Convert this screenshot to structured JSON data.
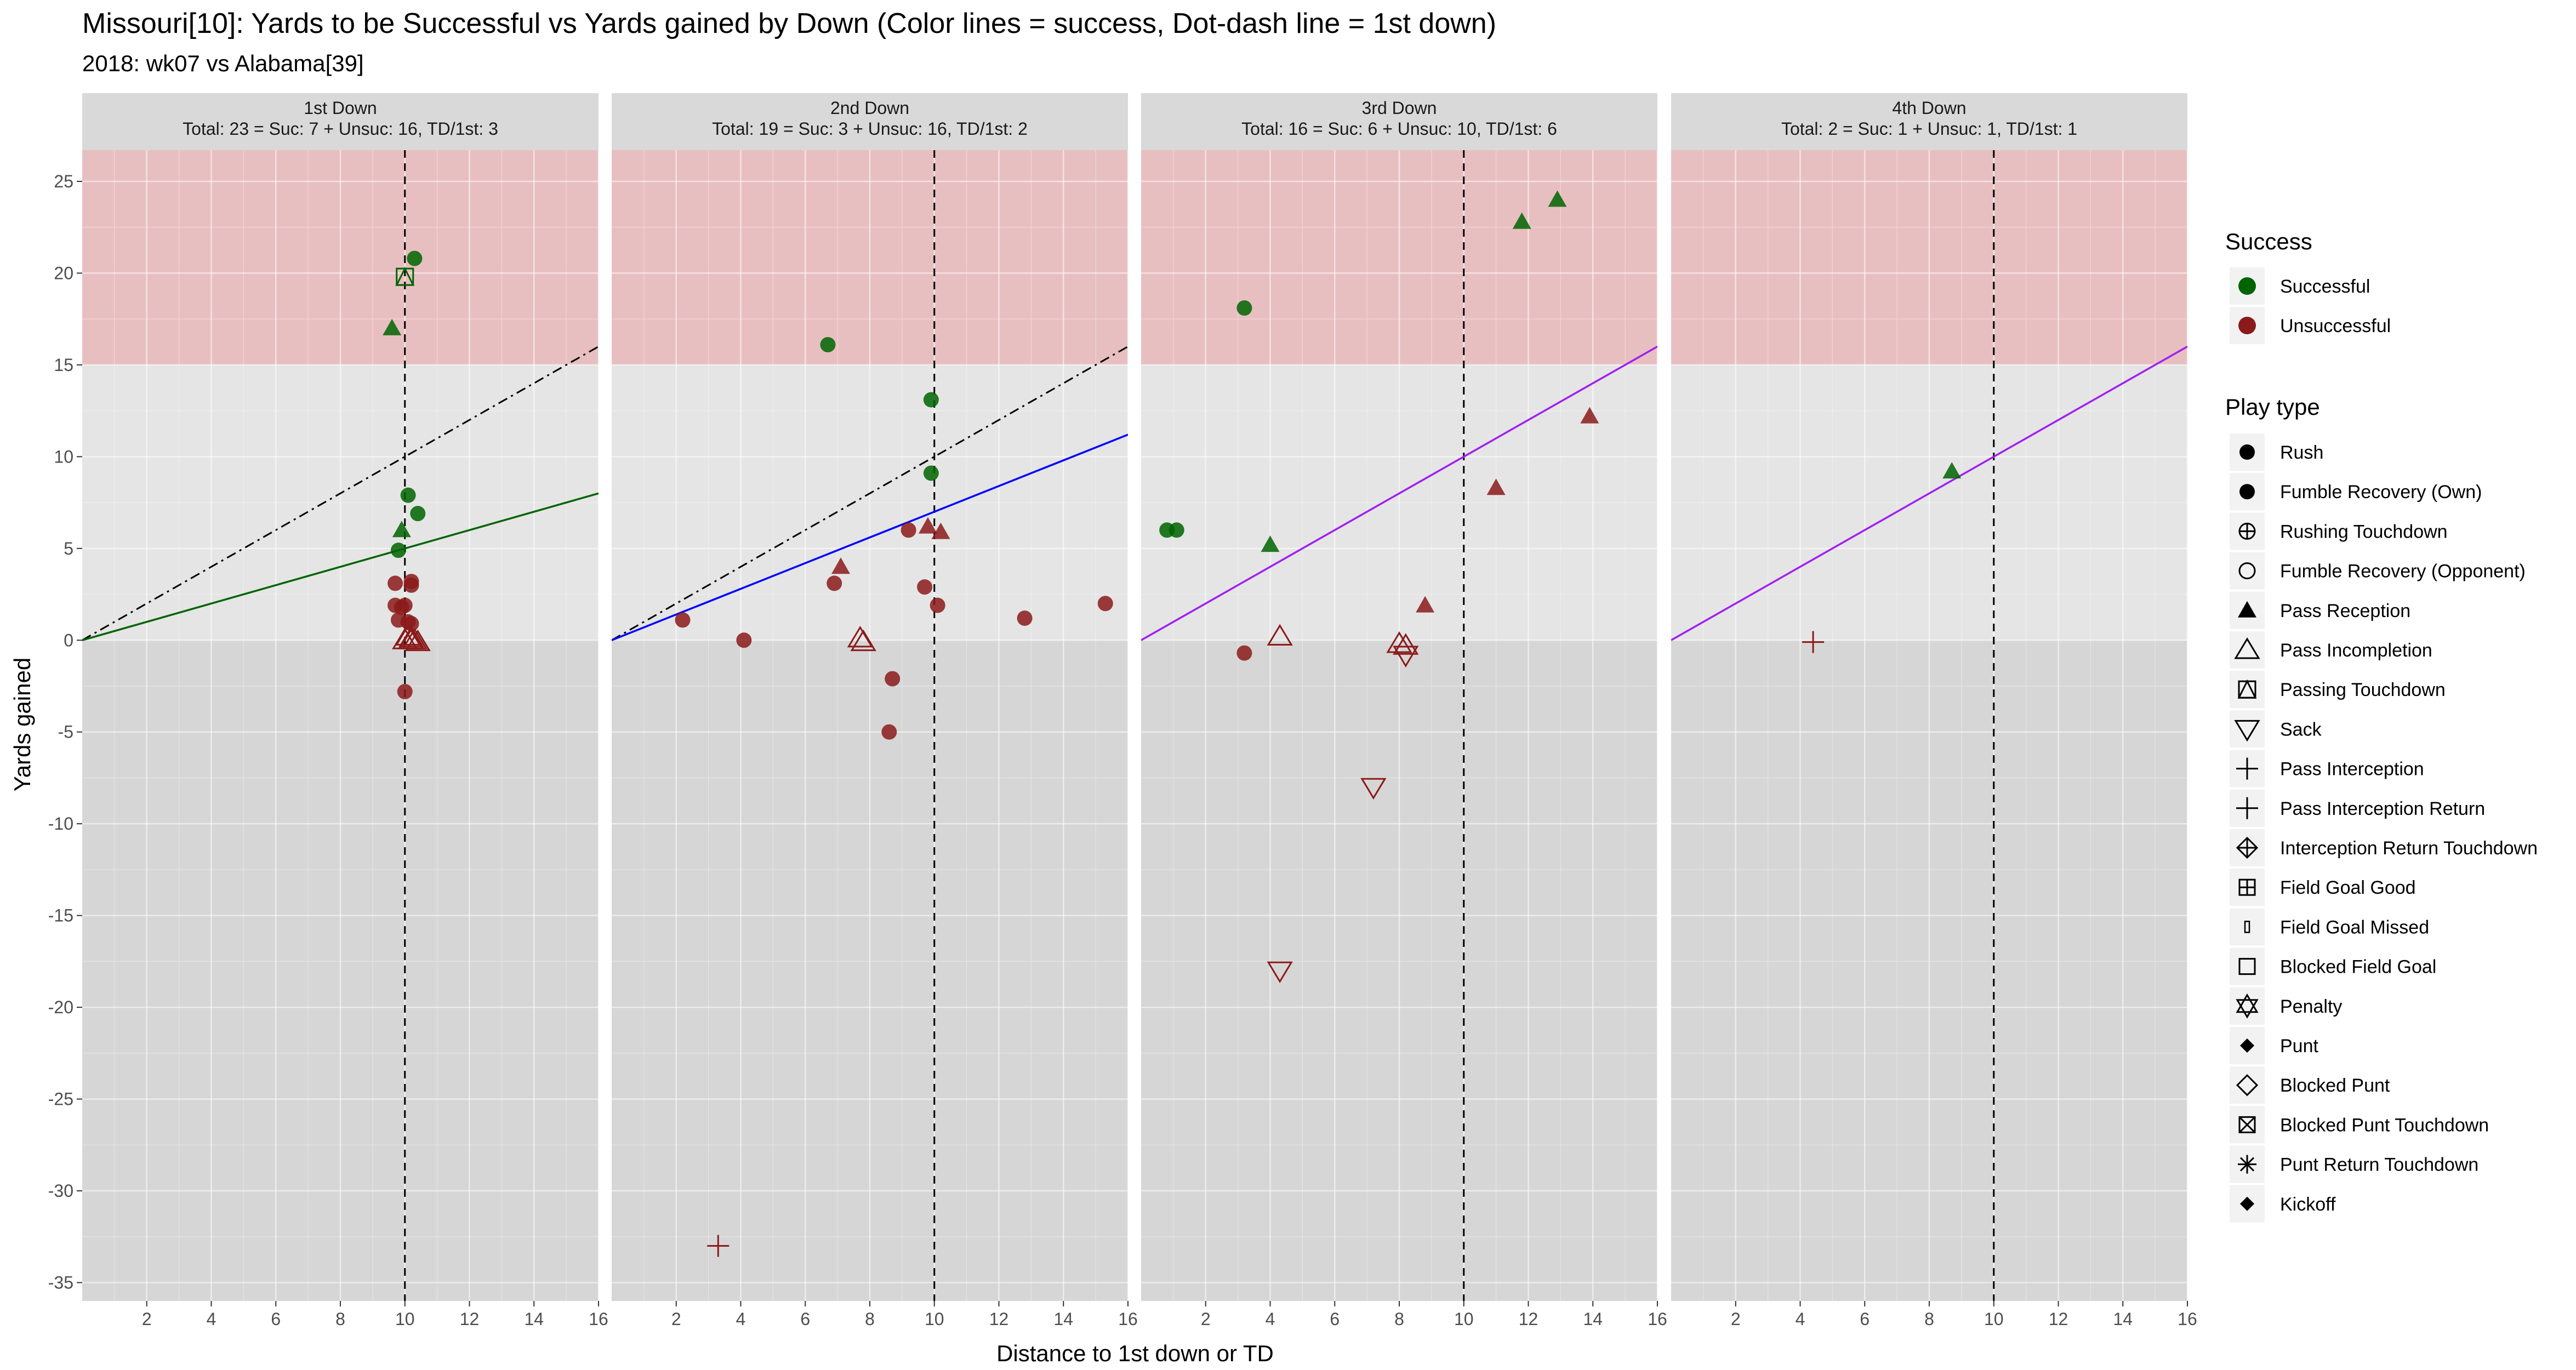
{
  "title": "Missouri[10]: Yards to be Successful vs Yards gained by Down  (Color lines = success, Dot-dash line = 1st down)",
  "subtitle": "2018: wk07 vs Alabama[39]",
  "chart_data": {
    "type": "scatter",
    "xlabel": "Distance to 1st down or TD",
    "ylabel": "Yards gained",
    "xlim": [
      0,
      16
    ],
    "ylim": [
      -36,
      26.7
    ],
    "x_ticks": [
      2,
      4,
      6,
      8,
      10,
      12,
      14,
      16
    ],
    "y_ticks": [
      25,
      20,
      15,
      10,
      5,
      0,
      -5,
      -10,
      -15,
      -20,
      -25,
      -30,
      -35
    ],
    "colors": {
      "successful": "#006400",
      "unsuccessful": "#8b1a1a",
      "panel_bg": "#e5e5e5",
      "loss_zone": "#d6d6d6",
      "big_play_zone": "#e8bfc1",
      "strip_bg": "#d9d9d9",
      "grid": "#ffffff"
    },
    "panels": [
      {
        "strip": [
          "1st Down",
          "Total: 23 = Suc: 7 + Unsuc: 16, TD/1st: 3"
        ],
        "success_line": {
          "slope": 0.5,
          "color": "#006400"
        },
        "first_down_line": true,
        "points": [
          {
            "x": 10.3,
            "y": 20.8,
            "type": "Rush",
            "success": true
          },
          {
            "x": 10.0,
            "y": 19.8,
            "type": "Passing Touchdown",
            "success": true
          },
          {
            "x": 9.6,
            "y": 17.0,
            "type": "Pass Reception",
            "success": true
          },
          {
            "x": 10.1,
            "y": 7.9,
            "type": "Rush",
            "success": true
          },
          {
            "x": 10.4,
            "y": 6.9,
            "type": "Rush",
            "success": true
          },
          {
            "x": 9.9,
            "y": 6.0,
            "type": "Pass Reception",
            "success": true
          },
          {
            "x": 9.8,
            "y": 4.9,
            "type": "Rush",
            "success": true
          },
          {
            "x": 9.7,
            "y": 3.1,
            "type": "Rush",
            "success": false
          },
          {
            "x": 10.2,
            "y": 3.2,
            "type": "Rush",
            "success": false
          },
          {
            "x": 10.2,
            "y": 3.0,
            "type": "Rush",
            "success": false
          },
          {
            "x": 9.7,
            "y": 1.9,
            "type": "Rush",
            "success": false
          },
          {
            "x": 9.9,
            "y": 1.8,
            "type": "Rush",
            "success": false
          },
          {
            "x": 10.0,
            "y": 1.9,
            "type": "Rush",
            "success": false
          },
          {
            "x": 9.8,
            "y": 1.1,
            "type": "Rush",
            "success": false
          },
          {
            "x": 10.1,
            "y": 1.0,
            "type": "Rush",
            "success": false
          },
          {
            "x": 10.2,
            "y": 0.9,
            "type": "Rush",
            "success": false
          },
          {
            "x": 10.0,
            "y": 0.0,
            "type": "Pass Incompletion",
            "success": false
          },
          {
            "x": 10.2,
            "y": 0.0,
            "type": "Pass Incompletion",
            "success": false
          },
          {
            "x": 10.3,
            "y": 0.0,
            "type": "Pass Incompletion",
            "success": false
          },
          {
            "x": 10.4,
            "y": -0.1,
            "type": "Pass Incompletion",
            "success": false
          },
          {
            "x": 10.1,
            "y": 0.2,
            "type": "Pass Incompletion",
            "success": false
          },
          {
            "x": 10.2,
            "y": 0.1,
            "type": "Pass Incompletion",
            "success": false
          },
          {
            "x": 10.0,
            "y": -2.8,
            "type": "Rush",
            "success": false
          }
        ]
      },
      {
        "strip": [
          "2nd Down",
          "Total: 19 = Suc: 3 + Unsuc: 16, TD/1st: 2"
        ],
        "success_line": {
          "slope": 0.7,
          "color": "#0000ff"
        },
        "first_down_line": true,
        "points": [
          {
            "x": 6.7,
            "y": 16.1,
            "type": "Rush",
            "success": true
          },
          {
            "x": 9.9,
            "y": 13.1,
            "type": "Rush",
            "success": true
          },
          {
            "x": 9.9,
            "y": 9.1,
            "type": "Rush",
            "success": true
          },
          {
            "x": 9.2,
            "y": 6.0,
            "type": "Rush",
            "success": false
          },
          {
            "x": 9.8,
            "y": 6.2,
            "type": "Pass Reception",
            "success": false
          },
          {
            "x": 10.2,
            "y": 5.9,
            "type": "Pass Reception",
            "success": false
          },
          {
            "x": 7.1,
            "y": 4.0,
            "type": "Pass Reception",
            "success": false
          },
          {
            "x": 6.9,
            "y": 3.1,
            "type": "Rush",
            "success": false
          },
          {
            "x": 9.7,
            "y": 2.9,
            "type": "Rush",
            "success": false
          },
          {
            "x": 10.1,
            "y": 1.9,
            "type": "Rush",
            "success": false
          },
          {
            "x": 15.3,
            "y": 2.0,
            "type": "Rush",
            "success": false
          },
          {
            "x": 12.8,
            "y": 1.2,
            "type": "Rush",
            "success": false
          },
          {
            "x": 2.2,
            "y": 1.1,
            "type": "Rush",
            "success": false
          },
          {
            "x": 4.1,
            "y": 0.0,
            "type": "Rush",
            "success": false
          },
          {
            "x": 7.7,
            "y": 0.1,
            "type": "Pass Incompletion",
            "success": false
          },
          {
            "x": 7.8,
            "y": -0.1,
            "type": "Pass Incompletion",
            "success": false
          },
          {
            "x": 8.7,
            "y": -2.1,
            "type": "Rush",
            "success": false
          },
          {
            "x": 8.6,
            "y": -5.0,
            "type": "Rush",
            "success": false
          },
          {
            "x": 3.3,
            "y": -33.0,
            "type": "Pass Interception",
            "success": false
          }
        ]
      },
      {
        "strip": [
          "3rd Down",
          "Total: 16 = Suc: 6 + Unsuc: 10, TD/1st: 6"
        ],
        "success_line": {
          "slope": 1.0,
          "color": "#a020f0"
        },
        "first_down_line": true,
        "points": [
          {
            "x": 12.9,
            "y": 24.0,
            "type": "Pass Reception",
            "success": true
          },
          {
            "x": 11.8,
            "y": 22.8,
            "type": "Pass Reception",
            "success": true
          },
          {
            "x": 3.2,
            "y": 18.1,
            "type": "Rush",
            "success": true
          },
          {
            "x": 0.8,
            "y": 6.0,
            "type": "Rush",
            "success": true
          },
          {
            "x": 1.1,
            "y": 6.0,
            "type": "Rush",
            "success": true
          },
          {
            "x": 4.0,
            "y": 5.2,
            "type": "Pass Reception",
            "success": true
          },
          {
            "x": 13.9,
            "y": 12.2,
            "type": "Pass Reception",
            "success": false
          },
          {
            "x": 11.0,
            "y": 8.3,
            "type": "Pass Reception",
            "success": false
          },
          {
            "x": 8.8,
            "y": 1.9,
            "type": "Pass Reception",
            "success": false
          },
          {
            "x": 4.3,
            "y": 0.2,
            "type": "Pass Incompletion",
            "success": false
          },
          {
            "x": 8.0,
            "y": -0.2,
            "type": "Pass Incompletion",
            "success": false
          },
          {
            "x": 8.2,
            "y": -0.3,
            "type": "Pass Incompletion",
            "success": false
          },
          {
            "x": 3.2,
            "y": -0.7,
            "type": "Rush",
            "success": false
          },
          {
            "x": 8.2,
            "y": -0.8,
            "type": "Sack",
            "success": false
          },
          {
            "x": 7.2,
            "y": -8.0,
            "type": "Sack",
            "success": false
          },
          {
            "x": 4.3,
            "y": -18.0,
            "type": "Sack",
            "success": false
          }
        ]
      },
      {
        "strip": [
          "4th Down",
          "Total: 2 = Suc: 1 + Unsuc: 1, TD/1st: 1"
        ],
        "success_line": {
          "slope": 1.0,
          "color": "#a020f0"
        },
        "first_down_line": false,
        "points": [
          {
            "x": 8.7,
            "y": 9.2,
            "type": "Pass Reception",
            "success": true
          },
          {
            "x": 4.4,
            "y": -0.1,
            "type": "Pass Interception",
            "success": false
          }
        ]
      }
    ],
    "legend": {
      "position": "right",
      "success_title": "Success",
      "success_items": [
        {
          "label": "Successful",
          "color": "#006400"
        },
        {
          "label": "Unsuccessful",
          "color": "#8b1a1a"
        }
      ],
      "playtype_title": "Play type",
      "playtype_items": [
        {
          "label": "Rush",
          "shape": "filled-circle"
        },
        {
          "label": "Fumble Recovery (Own)",
          "shape": "filled-circle"
        },
        {
          "label": "Rushing Touchdown",
          "shape": "circle-plus"
        },
        {
          "label": "Fumble Recovery (Opponent)",
          "shape": "open-circle"
        },
        {
          "label": "Pass Reception",
          "shape": "filled-triangle"
        },
        {
          "label": "Pass Incompletion",
          "shape": "open-triangle"
        },
        {
          "label": "Passing Touchdown",
          "shape": "square-triangle"
        },
        {
          "label": "Sack",
          "shape": "open-down-triangle"
        },
        {
          "label": "Pass Interception",
          "shape": "plus"
        },
        {
          "label": "Pass Interception Return",
          "shape": "plus"
        },
        {
          "label": "Interception Return Touchdown",
          "shape": "diamond-plus"
        },
        {
          "label": "Field Goal Good",
          "shape": "square-plus"
        },
        {
          "label": "Field Goal Missed",
          "shape": "small-rect"
        },
        {
          "label": "Blocked Field Goal",
          "shape": "open-square"
        },
        {
          "label": "Penalty",
          "shape": "star-of-david"
        },
        {
          "label": "Punt",
          "shape": "filled-diamond"
        },
        {
          "label": "Blocked Punt",
          "shape": "open-diamond"
        },
        {
          "label": "Blocked Punt Touchdown",
          "shape": "square-x"
        },
        {
          "label": "Punt Return Touchdown",
          "shape": "asterisk"
        },
        {
          "label": "Kickoff",
          "shape": "filled-diamond"
        }
      ]
    }
  }
}
